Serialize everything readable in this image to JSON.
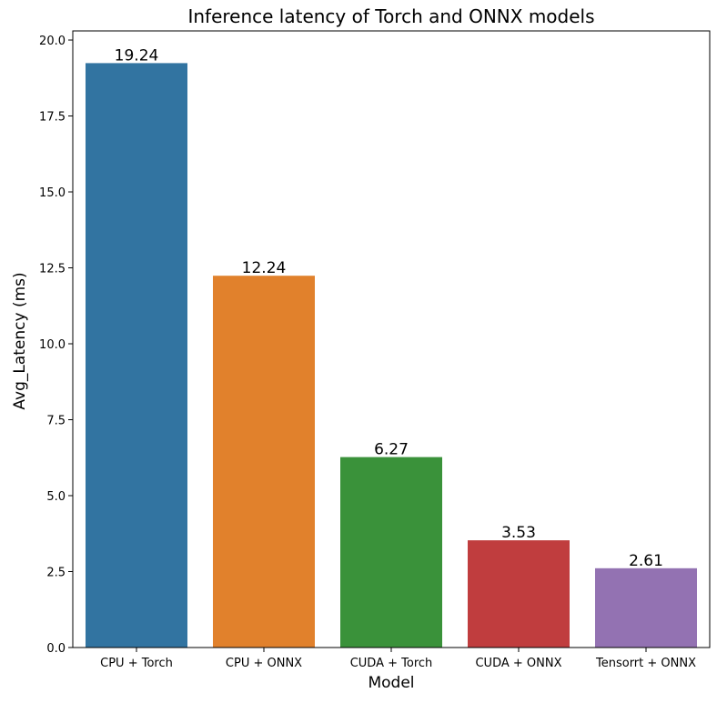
{
  "chart_data": {
    "type": "bar",
    "title": "Inference latency of Torch and ONNX models",
    "xlabel": "Model",
    "ylabel": "Avg_Latency (ms)",
    "categories": [
      "CPU + Torch",
      "CPU + ONNX",
      "CUDA + Torch",
      "CUDA + ONNX",
      "Tensorrt + ONNX"
    ],
    "values": [
      19.24,
      12.24,
      6.27,
      3.53,
      2.61
    ],
    "value_labels": [
      "19.24",
      "12.24",
      "6.27",
      "3.53",
      "2.61"
    ],
    "colors": [
      "#3274a1",
      "#e1812c",
      "#3a923a",
      "#c03d3e",
      "#9372b2"
    ],
    "ylim": [
      0,
      20.3
    ],
    "yticks": [
      0.0,
      2.5,
      5.0,
      7.5,
      10.0,
      12.5,
      15.0,
      17.5,
      20.0
    ],
    "ytick_labels": [
      "0.0",
      "2.5",
      "5.0",
      "7.5",
      "10.0",
      "12.5",
      "15.0",
      "17.5",
      "20.0"
    ],
    "grid": false,
    "legend": "none"
  }
}
